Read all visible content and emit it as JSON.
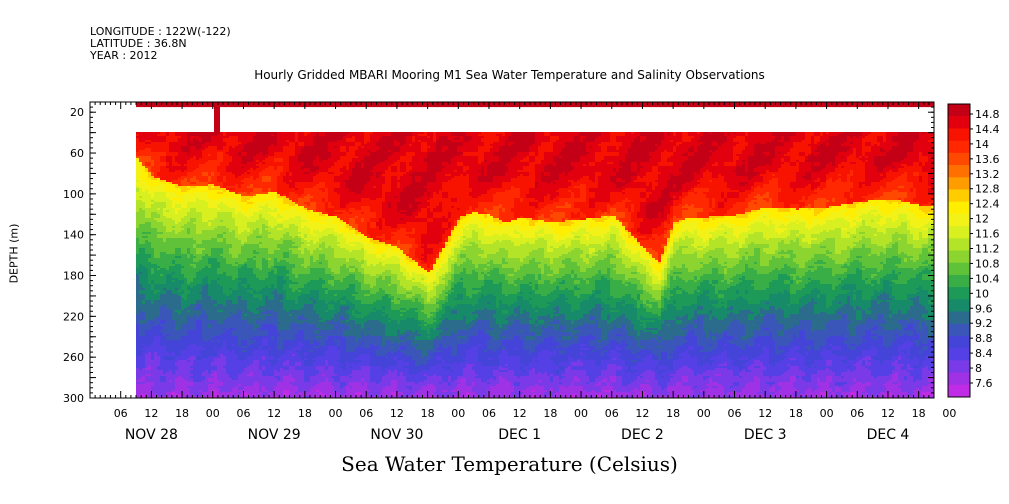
{
  "header": {
    "longitude": "LONGITUDE : 122W(-122)",
    "latitude": "LATITUDE : 36.8N",
    "year": "YEAR : 2012"
  },
  "chart_data": {
    "type": "heatmap",
    "title": "Hourly Gridded MBARI Mooring M1 Sea Water Temperature and Salinity Observations",
    "xlabel": "Sea Water Temperature (Celsius)",
    "ylabel": "DEPTH (m)",
    "y_ticks": [
      "20",
      "60",
      "100",
      "140",
      "180",
      "220",
      "260",
      "300"
    ],
    "y_range_m": [
      10,
      300
    ],
    "x_hour_ticks": [
      "06",
      "12",
      "18",
      "00",
      "06",
      "12",
      "18",
      "00",
      "06",
      "12",
      "18",
      "00",
      "06",
      "12",
      "18",
      "00",
      "06",
      "12",
      "18",
      "00",
      "06",
      "12",
      "18",
      "00",
      "06",
      "12",
      "18",
      "00"
    ],
    "x_day_labels": [
      "NOV 28",
      "NOV 29",
      "NOV 30",
      "DEC  1",
      "DEC  2",
      "DEC  3",
      "DEC  4"
    ],
    "x_range": [
      "2012-11-28 00:00",
      "2012-12-04 21:00"
    ],
    "data_start": "2012-11-28 09:00",
    "colorbar_labels": [
      "14.8",
      "14.4",
      "14",
      "13.6",
      "13.2",
      "12.8",
      "12.4",
      "12",
      "11.6",
      "11.2",
      "10.8",
      "10.4",
      "10",
      "9.6",
      "9.2",
      "8.8",
      "8.4",
      "8",
      "7.6"
    ],
    "colorbar_range": [
      7.6,
      14.8
    ],
    "colorbar_colors": [
      "#c40016",
      "#e2000e",
      "#f81200",
      "#ff2800",
      "#ff4800",
      "#ff7000",
      "#ff9c00",
      "#ffcc00",
      "#ffee00",
      "#f2f218",
      "#d8f020",
      "#b4e428",
      "#8cd430",
      "#60c238",
      "#3aae46",
      "#1e9a58",
      "#178a6a",
      "#2b6c8c",
      "#3a56b8",
      "#4444d8",
      "#5540e6",
      "#7a3ae8",
      "#a032e6",
      "#c02ce6"
    ],
    "profile_hours": [
      0,
      3,
      6,
      9,
      12,
      18,
      24,
      30,
      36,
      42,
      48,
      54,
      60,
      66,
      72,
      75,
      78,
      81,
      84,
      90,
      96,
      102,
      108,
      111,
      114,
      117,
      120,
      126,
      132,
      138,
      144,
      150,
      156,
      162,
      165
    ],
    "thermocline_depth_m": [
      40,
      42,
      55,
      62,
      80,
      90,
      88,
      100,
      95,
      112,
      120,
      140,
      150,
      175,
      120,
      115,
      118,
      125,
      120,
      125,
      122,
      118,
      150,
      165,
      125,
      120,
      120,
      118,
      110,
      112,
      110,
      105,
      102,
      108,
      110
    ],
    "surface_temps_c": [
      14.6,
      14.7
    ]
  }
}
